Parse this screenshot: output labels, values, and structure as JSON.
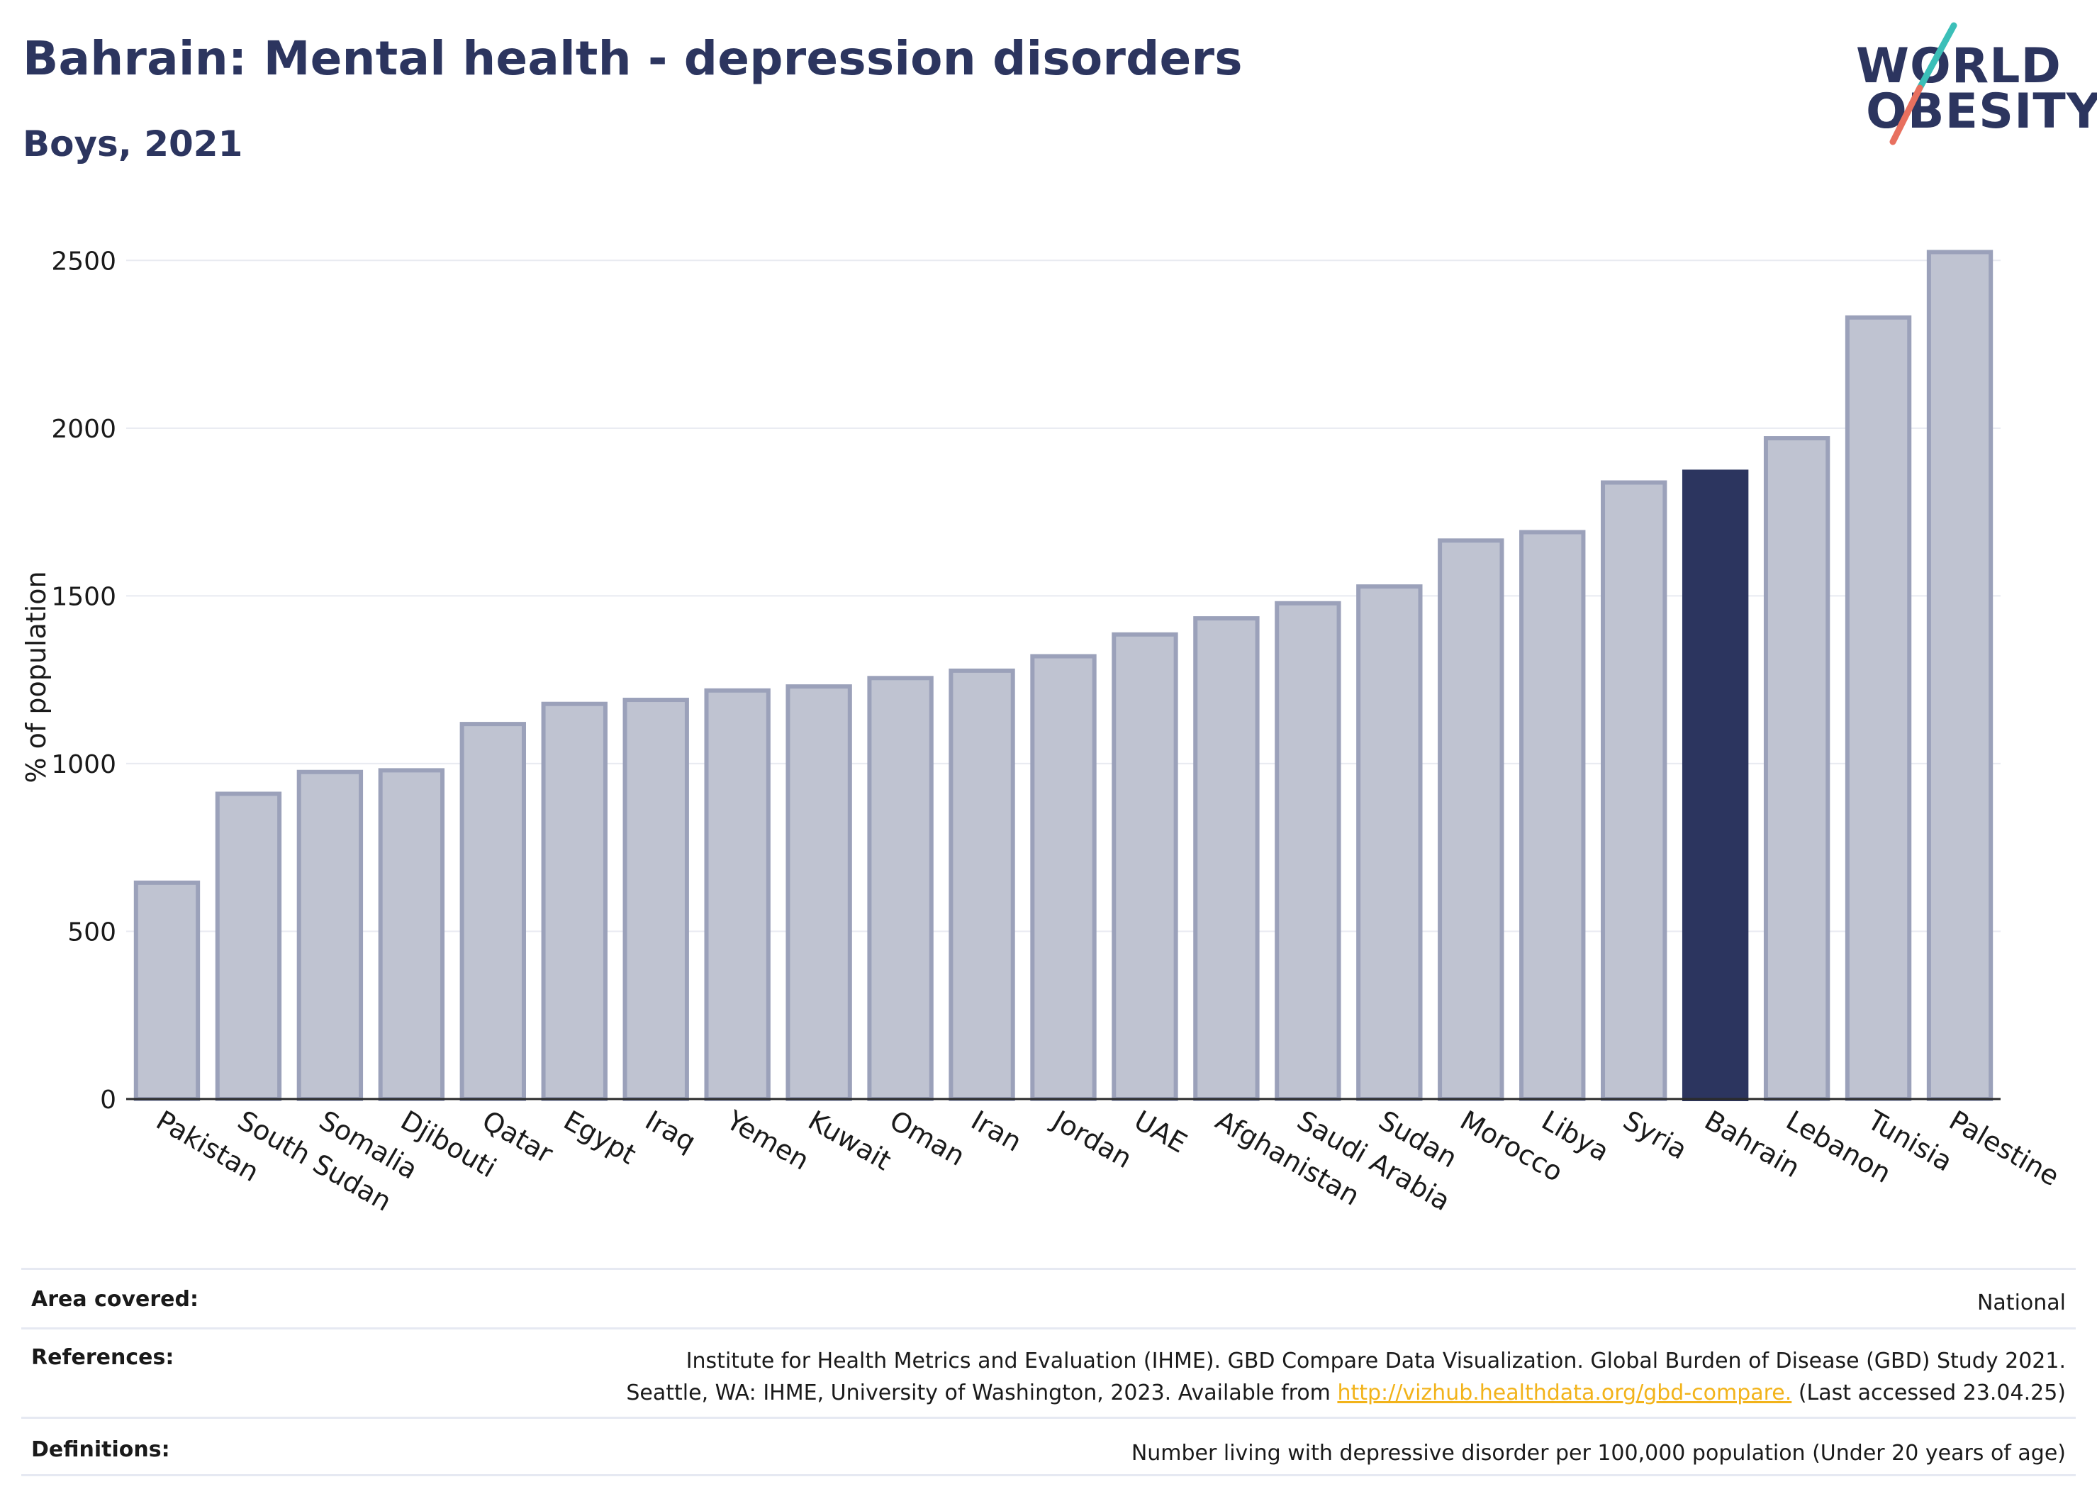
{
  "header": {
    "title": "Bahrain: Mental health - depression disorders",
    "subtitle": "Boys, 2021"
  },
  "logo": {
    "line1": "WORLD",
    "line2": "OBESITY",
    "colors": {
      "text": "#2c355f",
      "slash_top": "#3bbfb8",
      "slash_bottom": "#e8705f"
    }
  },
  "chart_data": {
    "type": "bar",
    "ylabel": "% of population",
    "ylim": [
      0,
      2600
    ],
    "yticks": [
      0,
      500,
      1000,
      1500,
      2000,
      2500
    ],
    "grid": true,
    "highlight": "Bahrain",
    "colors": {
      "bar": "#bfc3d1",
      "bar_border": "#9ba1ba",
      "highlight": "#2c355f",
      "grid": "#e8eaf1",
      "axis": "#2a2a2a"
    },
    "categories": [
      "Pakistan",
      "South Sudan",
      "Somalia",
      "Djibouti",
      "Qatar",
      "Egypt",
      "Iraq",
      "Yemen",
      "Kuwait",
      "Oman",
      "Iran",
      "Jordan",
      "UAE",
      "Afghanistan",
      "Saudi Arabia",
      "Sudan",
      "Morocco",
      "Libya",
      "Syria",
      "Bahrain",
      "Lebanon",
      "Tunisia",
      "Palestine"
    ],
    "values": [
      645,
      910,
      975,
      980,
      1118,
      1178,
      1190,
      1218,
      1230,
      1255,
      1277,
      1320,
      1385,
      1433,
      1478,
      1528,
      1665,
      1690,
      1838,
      1870,
      1970,
      2330,
      2525
    ]
  },
  "info": {
    "area_label": "Area covered:",
    "area_value": "National",
    "references_label": "References:",
    "references_line1": "Institute for Health Metrics and Evaluation (IHME). GBD Compare Data Visualization. Global Burden of Disease (GBD) Study 2021.",
    "references_line2_pre": "Seattle, WA: IHME, University of Washington, 2023. Available from ",
    "references_link": "http://vizhub.healthdata.org/gbd-compare.",
    "references_line2_post": " (Last accessed 23.04.25)",
    "definitions_label": "Definitions:",
    "definitions_value": "Number living with depressive disorder per 100,000 population (Under 20 years of age)"
  }
}
